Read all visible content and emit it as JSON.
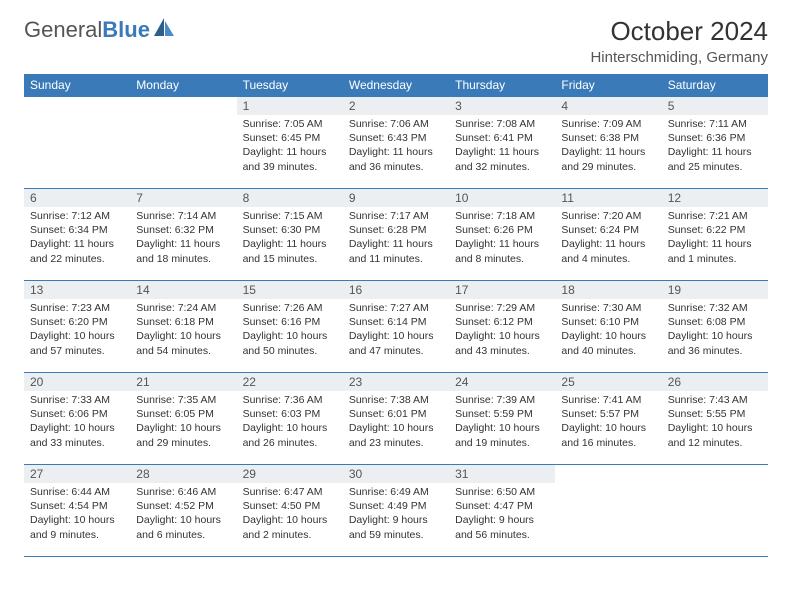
{
  "logo": {
    "text_general": "General",
    "text_blue": "Blue"
  },
  "header": {
    "month_title": "October 2024",
    "location": "Hinterschmiding, Germany"
  },
  "colors": {
    "accent": "#3a7ab8",
    "dow_bg": "#3a7ab8",
    "dow_text": "#ffffff",
    "daynum_bg": "#eceff1",
    "text": "#333333"
  },
  "dow": [
    "Sunday",
    "Monday",
    "Tuesday",
    "Wednesday",
    "Thursday",
    "Friday",
    "Saturday"
  ],
  "weeks": [
    [
      null,
      null,
      {
        "n": "1",
        "sunrise": "7:05 AM",
        "sunset": "6:45 PM",
        "day_h": "11",
        "day_m": "39"
      },
      {
        "n": "2",
        "sunrise": "7:06 AM",
        "sunset": "6:43 PM",
        "day_h": "11",
        "day_m": "36"
      },
      {
        "n": "3",
        "sunrise": "7:08 AM",
        "sunset": "6:41 PM",
        "day_h": "11",
        "day_m": "32"
      },
      {
        "n": "4",
        "sunrise": "7:09 AM",
        "sunset": "6:38 PM",
        "day_h": "11",
        "day_m": "29"
      },
      {
        "n": "5",
        "sunrise": "7:11 AM",
        "sunset": "6:36 PM",
        "day_h": "11",
        "day_m": "25"
      }
    ],
    [
      {
        "n": "6",
        "sunrise": "7:12 AM",
        "sunset": "6:34 PM",
        "day_h": "11",
        "day_m": "22"
      },
      {
        "n": "7",
        "sunrise": "7:14 AM",
        "sunset": "6:32 PM",
        "day_h": "11",
        "day_m": "18"
      },
      {
        "n": "8",
        "sunrise": "7:15 AM",
        "sunset": "6:30 PM",
        "day_h": "11",
        "day_m": "15"
      },
      {
        "n": "9",
        "sunrise": "7:17 AM",
        "sunset": "6:28 PM",
        "day_h": "11",
        "day_m": "11"
      },
      {
        "n": "10",
        "sunrise": "7:18 AM",
        "sunset": "6:26 PM",
        "day_h": "11",
        "day_m": "8"
      },
      {
        "n": "11",
        "sunrise": "7:20 AM",
        "sunset": "6:24 PM",
        "day_h": "11",
        "day_m": "4"
      },
      {
        "n": "12",
        "sunrise": "7:21 AM",
        "sunset": "6:22 PM",
        "day_h": "11",
        "day_m": "1"
      }
    ],
    [
      {
        "n": "13",
        "sunrise": "7:23 AM",
        "sunset": "6:20 PM",
        "day_h": "10",
        "day_m": "57"
      },
      {
        "n": "14",
        "sunrise": "7:24 AM",
        "sunset": "6:18 PM",
        "day_h": "10",
        "day_m": "54"
      },
      {
        "n": "15",
        "sunrise": "7:26 AM",
        "sunset": "6:16 PM",
        "day_h": "10",
        "day_m": "50"
      },
      {
        "n": "16",
        "sunrise": "7:27 AM",
        "sunset": "6:14 PM",
        "day_h": "10",
        "day_m": "47"
      },
      {
        "n": "17",
        "sunrise": "7:29 AM",
        "sunset": "6:12 PM",
        "day_h": "10",
        "day_m": "43"
      },
      {
        "n": "18",
        "sunrise": "7:30 AM",
        "sunset": "6:10 PM",
        "day_h": "10",
        "day_m": "40"
      },
      {
        "n": "19",
        "sunrise": "7:32 AM",
        "sunset": "6:08 PM",
        "day_h": "10",
        "day_m": "36"
      }
    ],
    [
      {
        "n": "20",
        "sunrise": "7:33 AM",
        "sunset": "6:06 PM",
        "day_h": "10",
        "day_m": "33"
      },
      {
        "n": "21",
        "sunrise": "7:35 AM",
        "sunset": "6:05 PM",
        "day_h": "10",
        "day_m": "29"
      },
      {
        "n": "22",
        "sunrise": "7:36 AM",
        "sunset": "6:03 PM",
        "day_h": "10",
        "day_m": "26"
      },
      {
        "n": "23",
        "sunrise": "7:38 AM",
        "sunset": "6:01 PM",
        "day_h": "10",
        "day_m": "23"
      },
      {
        "n": "24",
        "sunrise": "7:39 AM",
        "sunset": "5:59 PM",
        "day_h": "10",
        "day_m": "19"
      },
      {
        "n": "25",
        "sunrise": "7:41 AM",
        "sunset": "5:57 PM",
        "day_h": "10",
        "day_m": "16"
      },
      {
        "n": "26",
        "sunrise": "7:43 AM",
        "sunset": "5:55 PM",
        "day_h": "10",
        "day_m": "12"
      }
    ],
    [
      {
        "n": "27",
        "sunrise": "6:44 AM",
        "sunset": "4:54 PM",
        "day_h": "10",
        "day_m": "9"
      },
      {
        "n": "28",
        "sunrise": "6:46 AM",
        "sunset": "4:52 PM",
        "day_h": "10",
        "day_m": "6"
      },
      {
        "n": "29",
        "sunrise": "6:47 AM",
        "sunset": "4:50 PM",
        "day_h": "10",
        "day_m": "2"
      },
      {
        "n": "30",
        "sunrise": "6:49 AM",
        "sunset": "4:49 PM",
        "day_h": "9",
        "day_m": "59"
      },
      {
        "n": "31",
        "sunrise": "6:50 AM",
        "sunset": "4:47 PM",
        "day_h": "9",
        "day_m": "56"
      },
      null,
      null
    ]
  ]
}
